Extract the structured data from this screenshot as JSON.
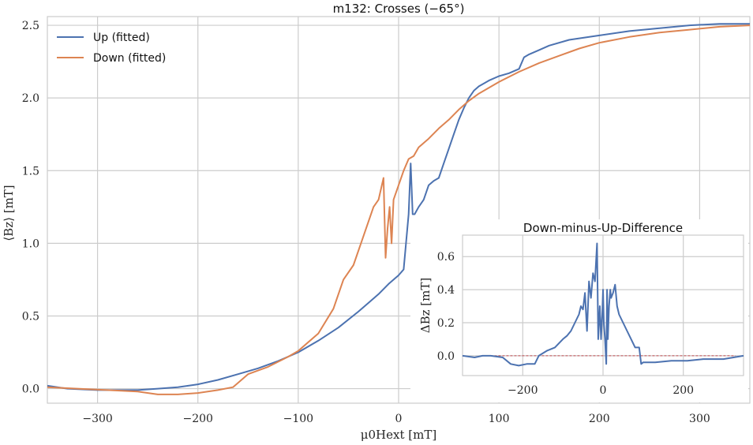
{
  "chart_data": [
    {
      "type": "line",
      "title": "m132: Crosses (−65°)",
      "xlabel": "μ0Hext [mT]",
      "ylabel": "⟨Bz⟩ [mT]",
      "xlim": [
        -350,
        350
      ],
      "ylim": [
        -0.1,
        2.56
      ],
      "xticks": [
        -300,
        -200,
        -100,
        0,
        100,
        200,
        300
      ],
      "xtick_labels": [
        "−300",
        "−200",
        "−100",
        "0",
        "100",
        "200",
        "300"
      ],
      "yticks": [
        0.0,
        0.5,
        1.0,
        1.5,
        2.0,
        2.5
      ],
      "ytick_labels": [
        "0.0",
        "0.5",
        "1.0",
        "1.5",
        "2.0",
        "2.5"
      ],
      "grid": true,
      "legend_position": "top-left",
      "series": [
        {
          "name": "Up (fitted)",
          "color": "#4c72b0",
          "x": [
            -350,
            -330,
            -300,
            -280,
            -260,
            -240,
            -220,
            -200,
            -180,
            -160,
            -140,
            -120,
            -100,
            -80,
            -60,
            -40,
            -20,
            -10,
            0,
            5,
            10,
            12,
            14,
            16,
            20,
            25,
            30,
            35,
            40,
            45,
            50,
            55,
            60,
            65,
            70,
            75,
            80,
            85,
            90,
            100,
            110,
            120,
            125,
            130,
            140,
            150,
            170,
            200,
            230,
            260,
            290,
            320,
            350
          ],
          "y": [
            0.02,
            0.0,
            -0.01,
            -0.01,
            -0.01,
            0.0,
            0.01,
            0.03,
            0.06,
            0.1,
            0.14,
            0.19,
            0.25,
            0.33,
            0.42,
            0.53,
            0.65,
            0.72,
            0.78,
            0.82,
            1.2,
            1.55,
            1.2,
            1.2,
            1.25,
            1.3,
            1.4,
            1.43,
            1.45,
            1.55,
            1.65,
            1.75,
            1.85,
            1.93,
            2.0,
            2.05,
            2.08,
            2.1,
            2.12,
            2.15,
            2.17,
            2.2,
            2.28,
            2.3,
            2.33,
            2.36,
            2.4,
            2.43,
            2.46,
            2.48,
            2.5,
            2.51,
            2.51
          ]
        },
        {
          "name": "Down (fitted)",
          "color": "#dd8452",
          "x": [
            -350,
            -320,
            -290,
            -260,
            -240,
            -220,
            -200,
            -180,
            -165,
            -150,
            -130,
            -110,
            -100,
            -80,
            -65,
            -55,
            -45,
            -35,
            -25,
            -20,
            -15,
            -13,
            -11,
            -9,
            -7,
            -5,
            0,
            5,
            10,
            15,
            20,
            30,
            40,
            50,
            60,
            70,
            80,
            90,
            100,
            120,
            140,
            160,
            180,
            200,
            230,
            260,
            290,
            320,
            350
          ],
          "y": [
            0.01,
            0.0,
            -0.01,
            -0.02,
            -0.04,
            -0.04,
            -0.03,
            -0.01,
            0.01,
            0.1,
            0.15,
            0.22,
            0.26,
            0.38,
            0.55,
            0.75,
            0.85,
            1.05,
            1.25,
            1.3,
            1.45,
            0.9,
            1.1,
            1.25,
            1.0,
            1.3,
            1.4,
            1.5,
            1.58,
            1.6,
            1.66,
            1.72,
            1.79,
            1.85,
            1.92,
            1.98,
            2.03,
            2.07,
            2.11,
            2.18,
            2.24,
            2.29,
            2.34,
            2.38,
            2.42,
            2.45,
            2.47,
            2.49,
            2.5
          ]
        }
      ]
    },
    {
      "type": "line",
      "title": "Down-minus-Up-Difference",
      "xlabel": "",
      "ylabel": "ΔBz [mT]",
      "xlim": [
        -350,
        350
      ],
      "ylim": [
        -0.12,
        0.73
      ],
      "xticks": [
        -200,
        0,
        200
      ],
      "xtick_labels": [
        "−200",
        "0",
        "200"
      ],
      "yticks": [
        0.0,
        0.2,
        0.4,
        0.6
      ],
      "ytick_labels": [
        "0.0",
        "0.2",
        "0.4",
        "0.6"
      ],
      "grid": true,
      "legend_position": "none",
      "reference_line": {
        "y": 0.0,
        "color": "#c44e52"
      },
      "series": [
        {
          "color": "#4c72b0",
          "x": [
            -350,
            -320,
            -300,
            -280,
            -250,
            -230,
            -210,
            -190,
            -170,
            -160,
            -140,
            -120,
            -100,
            -90,
            -80,
            -70,
            -60,
            -55,
            -50,
            -45,
            -40,
            -35,
            -30,
            -25,
            -20,
            -15,
            -12,
            -10,
            -8,
            -5,
            -2,
            0,
            2,
            5,
            8,
            10,
            12,
            15,
            18,
            20,
            25,
            30,
            35,
            40,
            50,
            60,
            70,
            80,
            90,
            95,
            100,
            130,
            170,
            210,
            250,
            300,
            350
          ],
          "y": [
            0.0,
            -0.01,
            0.0,
            0.0,
            -0.01,
            -0.05,
            -0.06,
            -0.05,
            -0.05,
            0.0,
            0.03,
            0.05,
            0.1,
            0.12,
            0.15,
            0.2,
            0.25,
            0.3,
            0.28,
            0.38,
            0.15,
            0.45,
            0.35,
            0.5,
            0.45,
            0.68,
            0.1,
            0.2,
            0.3,
            0.1,
            0.25,
            0.4,
            0.2,
            0.1,
            -0.05,
            0.4,
            0.1,
            0.3,
            0.4,
            0.35,
            0.38,
            0.43,
            0.3,
            0.25,
            0.2,
            0.15,
            0.1,
            0.05,
            0.05,
            -0.05,
            -0.04,
            -0.04,
            -0.03,
            -0.03,
            -0.02,
            -0.02,
            0.0
          ]
        }
      ]
    }
  ]
}
